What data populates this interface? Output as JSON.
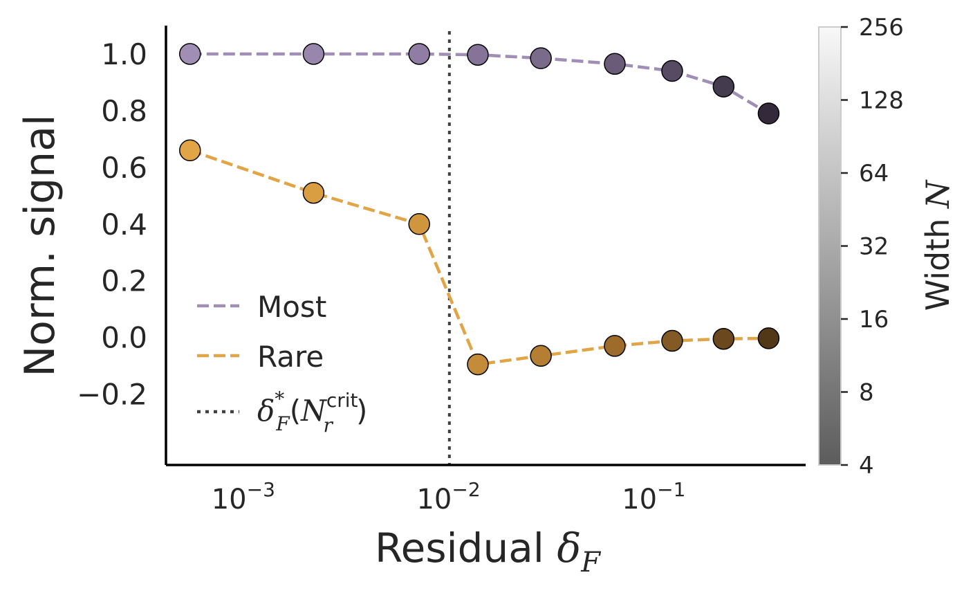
{
  "chart_data": {
    "type": "line",
    "xlabel": "Residual δF",
    "ylabel": "Norm. signal",
    "xscale": "log",
    "xlim": [
      0.00042,
      0.55
    ],
    "ylim": [
      -0.45,
      1.1
    ],
    "x_ticks": [
      {
        "value": 0.001,
        "label": "10−3"
      },
      {
        "value": 0.01,
        "label": "10−2"
      },
      {
        "value": 0.1,
        "label": "10−1"
      }
    ],
    "y_ticks": [
      {
        "value": 1.0,
        "label": "1.0"
      },
      {
        "value": 0.8,
        "label": "0.8"
      },
      {
        "value": 0.6,
        "label": "0.6"
      },
      {
        "value": 0.4,
        "label": "0.4"
      },
      {
        "value": 0.2,
        "label": "0.2"
      },
      {
        "value": 0.0,
        "label": "0.0"
      },
      {
        "value": -0.2,
        "label": "−0.2"
      }
    ],
    "grid": false,
    "legend_position": "lower-left",
    "series": [
      {
        "name": "Most",
        "line_color": "#a08eb5",
        "x": [
          0.00055,
          0.0022,
          0.0072,
          0.0139,
          0.0282,
          0.0646,
          0.123,
          0.219,
          0.363
        ],
        "y": [
          1.0,
          1.0,
          1.0,
          0.997,
          0.985,
          0.965,
          0.94,
          0.885,
          0.79
        ],
        "point_colors": [
          "#a08eb5",
          "#9886ac",
          "#8f7da3",
          "#857497",
          "#7b6b8b",
          "#6a5c78",
          "#574b63",
          "#453b4f",
          "#34293a"
        ]
      },
      {
        "name": "Rare",
        "line_color": "#e2a545",
        "x": [
          0.00055,
          0.0022,
          0.0072,
          0.0139,
          0.0282,
          0.0646,
          0.123,
          0.219,
          0.363
        ],
        "y": [
          0.66,
          0.51,
          0.4,
          -0.095,
          -0.065,
          -0.03,
          -0.012,
          -0.005,
          -0.003
        ],
        "point_colors": [
          "#e2a545",
          "#d99e41",
          "#d0963e",
          "#c48c39",
          "#b47f33",
          "#9d6c2b",
          "#845a24",
          "#6b481d",
          "#533817"
        ]
      }
    ],
    "vline": {
      "name": "δ*F(Nrcrit)",
      "x": 0.0101,
      "style": "dotted",
      "color": "#404040"
    },
    "legend_entries": [
      {
        "label": "Most",
        "color": "#a08eb5",
        "style": "dashed"
      },
      {
        "label": "Rare",
        "color": "#e2a545",
        "style": "dashed"
      },
      {
        "label": "δ*F(Nrcrit)",
        "color": "#404040",
        "style": "dotted"
      }
    ],
    "colorbar": {
      "label": "Width N",
      "scale": "log2",
      "range": [
        4,
        256
      ],
      "ticks": [
        "4",
        "8",
        "16",
        "32",
        "64",
        "128",
        "256"
      ],
      "color_low": "#5c5c5c",
      "color_high": "#f8f8f8"
    }
  },
  "text": {
    "xlabel_main": "Residual ",
    "xlabel_sym": "δ",
    "xlabel_sub": "F",
    "ylabel": "Norm. signal",
    "cbar_label_main": "Width ",
    "cbar_label_sym": "N",
    "legend_most": "Most",
    "legend_rare": "Rare",
    "legend_crit_delta": "δ",
    "legend_crit_star": "*",
    "legend_crit_sub": "F",
    "legend_crit_paren_open": "(",
    "legend_crit_N": "N",
    "legend_crit_sup": "crit",
    "legend_crit_r": "r",
    "legend_crit_paren_close": ")"
  }
}
